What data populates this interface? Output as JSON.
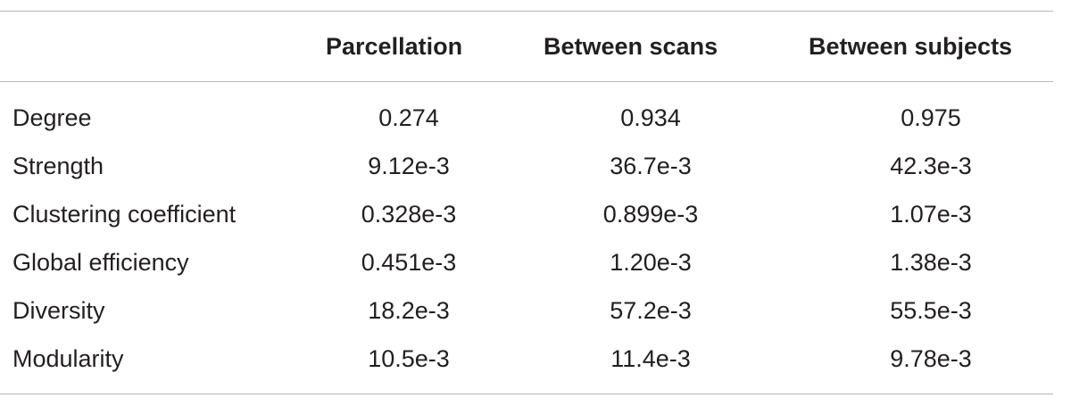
{
  "table": {
    "headers": [
      "",
      "Parcellation",
      "Between scans",
      "Between subjects"
    ],
    "rows": [
      {
        "label": "Degree",
        "values": [
          "0.274",
          "0.934",
          "0.975"
        ]
      },
      {
        "label": "Strength",
        "values": [
          "9.12e-3",
          "36.7e-3",
          "42.3e-3"
        ]
      },
      {
        "label": "Clustering coefficient",
        "values": [
          "0.328e-3",
          "0.899e-3",
          "1.07e-3"
        ]
      },
      {
        "label": "Global efficiency",
        "values": [
          "0.451e-3",
          "1.20e-3",
          "1.38e-3"
        ]
      },
      {
        "label": "Diversity",
        "values": [
          "18.2e-3",
          "57.2e-3",
          "55.5e-3"
        ]
      },
      {
        "label": "Modularity",
        "values": [
          "10.5e-3",
          "11.4e-3",
          "9.78e-3"
        ]
      }
    ]
  }
}
